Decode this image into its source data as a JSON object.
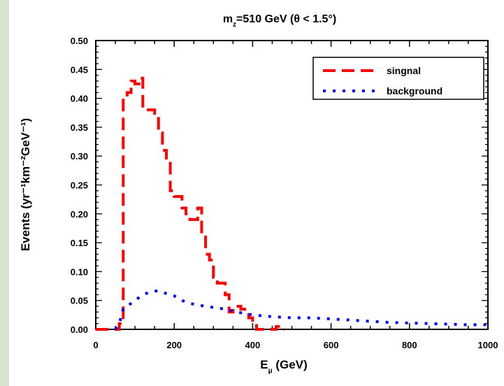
{
  "colors": {
    "signal": "#ff0000",
    "background": "#0000ff",
    "left_strip": "#d6e3cf"
  },
  "chart_data": {
    "type": "line",
    "title": {
      "main": "m",
      "sub": "z",
      "rest": "=510 GeV (θ < 1.5°)"
    },
    "xlabel": {
      "main": "E",
      "sub": "μ",
      "rest": " (GeV)"
    },
    "ylabel": "Events  (yr⁻¹km⁻²GeV⁻¹)",
    "xlim": [
      0,
      1000
    ],
    "ylim": [
      0,
      0.5
    ],
    "xticks": [
      0,
      200,
      400,
      600,
      800,
      1000
    ],
    "xtick_labels": [
      "0",
      "200",
      "400",
      "600",
      "800",
      "1000"
    ],
    "yticks": [
      0,
      0.05,
      0.1,
      0.15,
      0.2,
      0.25,
      0.3,
      0.35,
      0.4,
      0.45,
      0.5
    ],
    "ytick_labels": [
      "0.00",
      "0.05",
      "0.10",
      "0.15",
      "0.20",
      "0.25",
      "0.30",
      "0.35",
      "0.40",
      "0.45",
      "0.50"
    ],
    "grid": false,
    "legend_position": "top-right",
    "series": [
      {
        "name": "singnal",
        "style": "dashed",
        "step": true,
        "x": [
          0,
          30,
          50,
          60,
          70,
          80,
          90,
          100,
          110,
          120,
          130,
          140,
          150,
          160,
          170,
          180,
          190,
          200,
          210,
          220,
          230,
          240,
          250,
          260,
          270,
          280,
          290,
          300,
          310,
          320,
          330,
          340,
          350,
          360,
          370,
          380,
          390,
          400,
          410,
          420,
          430,
          440,
          450,
          460,
          470
        ],
        "y": [
          0.0,
          0.0,
          0.0,
          0.01,
          0.4,
          0.41,
          0.43,
          0.425,
          0.435,
          0.38,
          0.38,
          0.38,
          0.37,
          0.34,
          0.31,
          0.29,
          0.24,
          0.23,
          0.23,
          0.21,
          0.2,
          0.19,
          0.19,
          0.21,
          0.16,
          0.13,
          0.12,
          0.09,
          0.08,
          0.08,
          0.06,
          0.03,
          0.04,
          0.04,
          0.035,
          0.03,
          0.02,
          0.01,
          0.0,
          0.0,
          0.0,
          0.0,
          0.0,
          0.005,
          0.0
        ]
      },
      {
        "name": "background",
        "style": "dotted",
        "step": false,
        "x": [
          50,
          60,
          70,
          80,
          100,
          120,
          140,
          160,
          180,
          200,
          220,
          240,
          260,
          280,
          300,
          330,
          360,
          400,
          450,
          500,
          550,
          600,
          650,
          700,
          750,
          800,
          850,
          900,
          950,
          1000
        ],
        "y": [
          0.0,
          0.01,
          0.035,
          0.04,
          0.05,
          0.06,
          0.065,
          0.067,
          0.062,
          0.058,
          0.05,
          0.045,
          0.042,
          0.04,
          0.038,
          0.035,
          0.03,
          0.025,
          0.022,
          0.02,
          0.02,
          0.018,
          0.016,
          0.014,
          0.012,
          0.011,
          0.01,
          0.009,
          0.008,
          0.008
        ]
      }
    ]
  }
}
